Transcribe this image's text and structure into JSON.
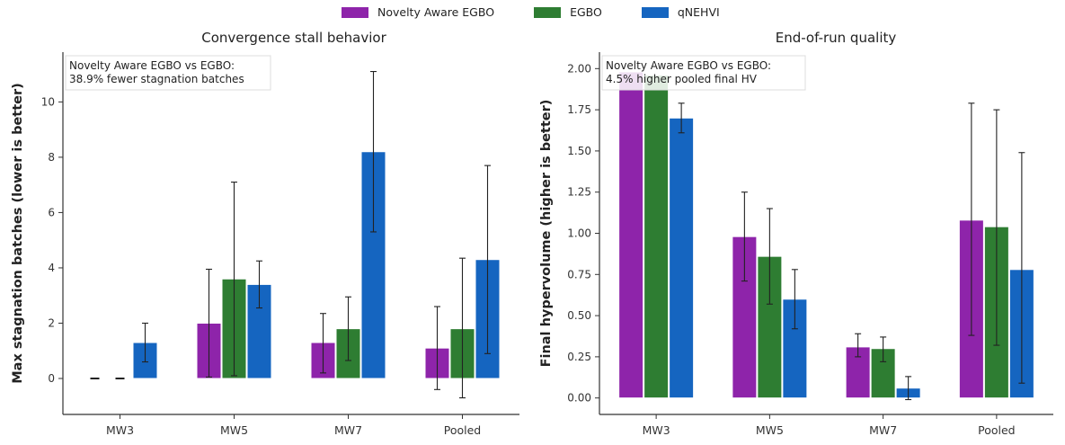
{
  "legend": {
    "items": [
      {
        "label": "Novelty Aware EGBO",
        "color": "#8e24aa"
      },
      {
        "label": "EGBO",
        "color": "#2e7d32"
      },
      {
        "label": "qNEHVI",
        "color": "#1565c0"
      }
    ]
  },
  "chart_data": [
    {
      "type": "bar",
      "title": "Convergence stall behavior",
      "xlabel": "",
      "ylabel": "Max stagnation batches (lower is better)",
      "categories": [
        "MW3",
        "MW5",
        "MW7",
        "Pooled"
      ],
      "ylim": [
        -1.3,
        11.8
      ],
      "yticks": [
        0,
        2,
        4,
        6,
        8,
        10
      ],
      "ytick_labels": [
        "0",
        "2",
        "4",
        "6",
        "8",
        "10"
      ],
      "annotation": [
        "Novelty Aware EGBO vs EGBO:",
        "38.9% fewer stagnation batches"
      ],
      "series": [
        {
          "name": "Novelty Aware EGBO",
          "color": "#8e24aa",
          "values": [
            0.0,
            2.0,
            1.3,
            1.1
          ],
          "err_low": [
            0.0,
            0.05,
            0.2,
            -0.4
          ],
          "err_high": [
            0.0,
            3.95,
            2.35,
            2.6
          ]
        },
        {
          "name": "EGBO",
          "color": "#2e7d32",
          "values": [
            0.0,
            3.6,
            1.8,
            1.8
          ],
          "err_low": [
            0.0,
            0.1,
            0.65,
            -0.7
          ],
          "err_high": [
            0.0,
            7.1,
            2.95,
            4.35
          ]
        },
        {
          "name": "qNEHVI",
          "color": "#1565c0",
          "values": [
            1.3,
            3.4,
            8.2,
            4.3
          ],
          "err_low": [
            0.6,
            2.55,
            5.3,
            0.9
          ],
          "err_high": [
            2.0,
            4.25,
            11.1,
            7.7
          ]
        }
      ]
    },
    {
      "type": "bar",
      "title": "End-of-run quality",
      "xlabel": "",
      "ylabel": "Final hypervolume (higher is better)",
      "categories": [
        "MW3",
        "MW5",
        "MW7",
        "Pooled"
      ],
      "ylim": [
        -0.1,
        2.1
      ],
      "yticks": [
        0.0,
        0.25,
        0.5,
        0.75,
        1.0,
        1.25,
        1.5,
        1.75,
        2.0
      ],
      "ytick_labels": [
        "0.00",
        "0.25",
        "0.50",
        "0.75",
        "1.00",
        "1.25",
        "1.50",
        "1.75",
        "2.00"
      ],
      "annotation": [
        "Novelty Aware EGBO vs EGBO:",
        "4.5% higher pooled final HV"
      ],
      "series": [
        {
          "name": "Novelty Aware EGBO",
          "color": "#8e24aa",
          "values": [
            1.98,
            0.98,
            0.31,
            1.08
          ],
          "err_low": [
            1.98,
            0.71,
            0.25,
            0.38
          ],
          "err_high": [
            1.98,
            1.25,
            0.39,
            1.79
          ]
        },
        {
          "name": "EGBO",
          "color": "#2e7d32",
          "values": [
            1.96,
            0.86,
            0.3,
            1.04
          ],
          "err_low": [
            1.96,
            0.57,
            0.22,
            0.32
          ],
          "err_high": [
            1.96,
            1.15,
            0.37,
            1.75
          ]
        },
        {
          "name": "qNEHVI",
          "color": "#1565c0",
          "values": [
            1.7,
            0.6,
            0.06,
            0.78
          ],
          "err_low": [
            1.61,
            0.42,
            -0.01,
            0.09
          ],
          "err_high": [
            1.79,
            0.78,
            0.13,
            1.49
          ]
        }
      ]
    }
  ]
}
